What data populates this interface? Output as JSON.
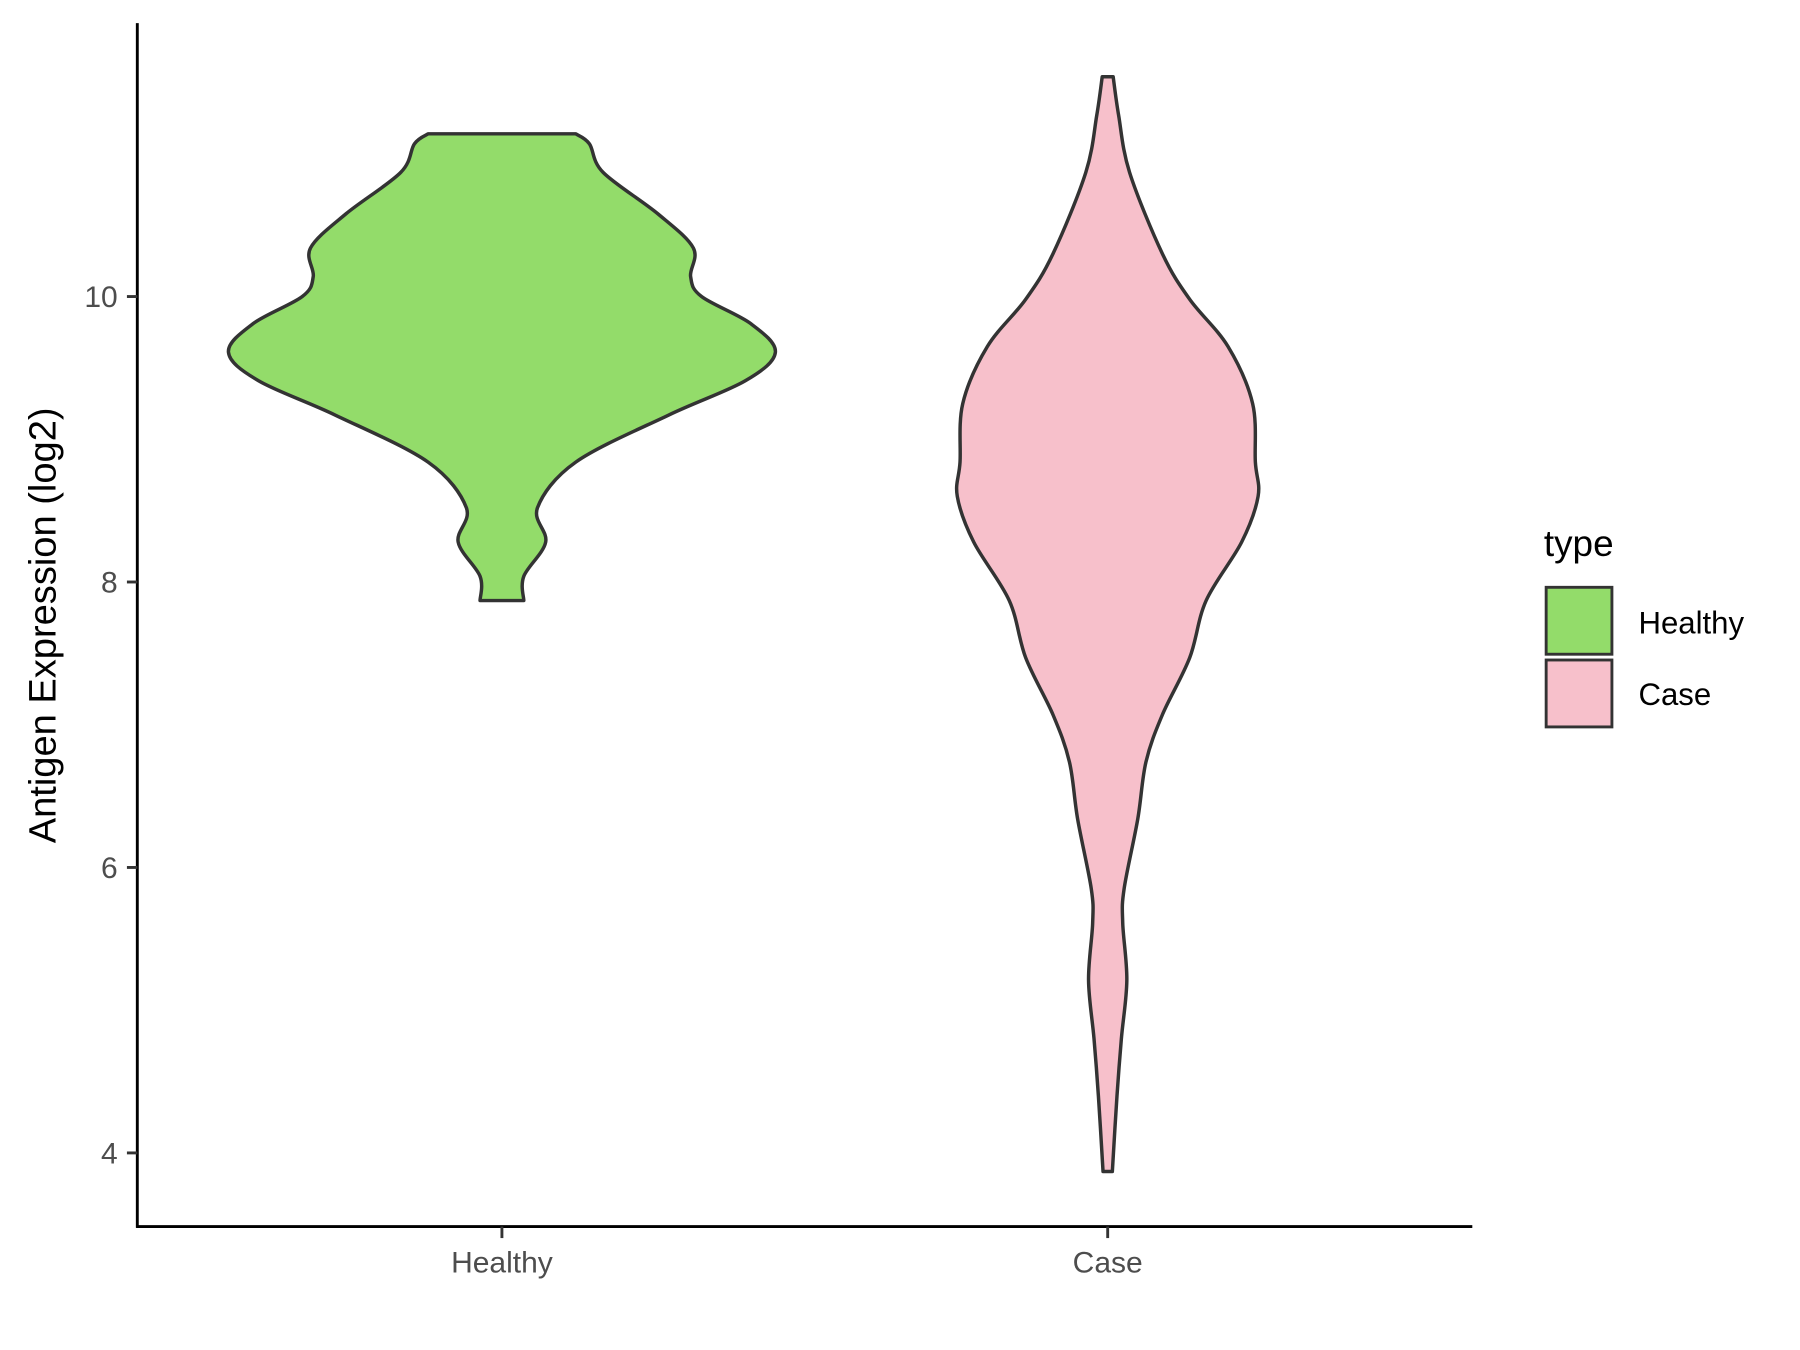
{
  "chart_data": {
    "type": "violin",
    "title": "",
    "xlabel": "",
    "ylabel": "Antigen Expression (log2)",
    "ylim": [
      3.5,
      11.9
    ],
    "yticks": [
      4,
      6,
      8,
      10
    ],
    "categories": [
      "Healthy",
      "Case"
    ],
    "grid": false,
    "legend": {
      "title": "type",
      "placement": "right",
      "entries": [
        {
          "label": "Healthy",
          "color": "#93DC6A"
        },
        {
          "label": "Case",
          "color": "#F7C0CB"
        }
      ]
    },
    "outline_color": "#333333",
    "series": [
      {
        "category": "Healthy",
        "color": "#93DC6A",
        "min": 7.87,
        "max": 11.14,
        "density_profile": [
          [
            11.14,
            0.27
          ],
          [
            11.07,
            0.32
          ],
          [
            10.87,
            0.37
          ],
          [
            10.58,
            0.57
          ],
          [
            10.34,
            0.7
          ],
          [
            10.14,
            0.69
          ],
          [
            10.0,
            0.73
          ],
          [
            9.81,
            0.91
          ],
          [
            9.61,
            1.0
          ],
          [
            9.41,
            0.89
          ],
          [
            9.17,
            0.61
          ],
          [
            8.84,
            0.27
          ],
          [
            8.52,
            0.13
          ],
          [
            8.28,
            0.16
          ],
          [
            8.04,
            0.08
          ],
          [
            7.87,
            0.08
          ]
        ]
      },
      {
        "category": "Case",
        "color": "#F7C0CB",
        "min": 3.87,
        "max": 11.54,
        "density_profile": [
          [
            11.54,
            0.02
          ],
          [
            11.27,
            0.04
          ],
          [
            10.87,
            0.08
          ],
          [
            10.3,
            0.2
          ],
          [
            9.98,
            0.3
          ],
          [
            9.65,
            0.44
          ],
          [
            9.25,
            0.53
          ],
          [
            8.84,
            0.54
          ],
          [
            8.6,
            0.55
          ],
          [
            8.28,
            0.49
          ],
          [
            7.87,
            0.36
          ],
          [
            7.47,
            0.3
          ],
          [
            7.07,
            0.2
          ],
          [
            6.74,
            0.14
          ],
          [
            6.34,
            0.11
          ],
          [
            5.85,
            0.06
          ],
          [
            5.61,
            0.055
          ],
          [
            5.21,
            0.07
          ],
          [
            4.8,
            0.05
          ],
          [
            4.4,
            0.034
          ],
          [
            3.87,
            0.017
          ]
        ]
      }
    ]
  }
}
